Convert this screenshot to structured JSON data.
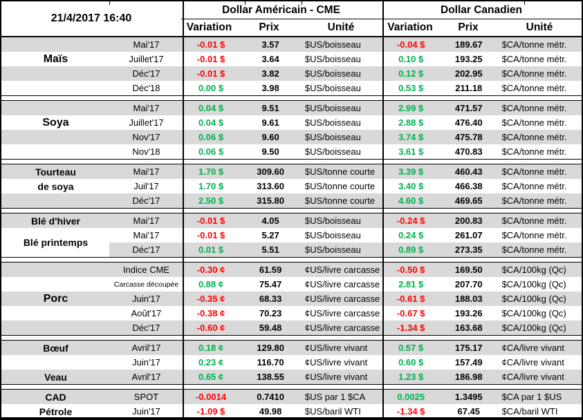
{
  "meta": {
    "datetime": "21/4/2017 16:40"
  },
  "header": {
    "us_title": "Dollar Américain - CME",
    "cad_title": "Dollar Canadien",
    "col_variation": "Variation",
    "col_prix": "Prix",
    "col_unite": "Unité"
  },
  "colors": {
    "positive_green": "#00B050",
    "negative_red": "#FF0000",
    "row_stripe_gray": "#D9D9D9"
  },
  "sections": [
    {
      "labels": [
        {
          "text": "Maïs",
          "center_row": 1.5,
          "size": "lg"
        }
      ],
      "rows": [
        {
          "month": "Mai'17",
          "us_variation": "-0.01 $",
          "us_price": "3.57",
          "us_unit": "$US/boisseau",
          "cad_variation": "-0.04 $",
          "cad_price": "189.67",
          "cad_unit": "$CA/tonne métr."
        },
        {
          "month": "Juillet'17",
          "us_variation": "-0.01 $",
          "us_price": "3.64",
          "us_unit": "$US/boisseau",
          "cad_variation": "0.10 $",
          "cad_price": "193.25",
          "cad_unit": "$CA/tonne métr."
        },
        {
          "month": "Déc'17",
          "us_variation": "-0.01 $",
          "us_price": "3.82",
          "us_unit": "$US/boisseau",
          "cad_variation": "0.12 $",
          "cad_price": "202.95",
          "cad_unit": "$CA/tonne métr."
        },
        {
          "month": "Déc'18",
          "us_variation": "0.00 $",
          "us_price": "3.98",
          "us_unit": "$US/boisseau",
          "cad_variation": "0.53 $",
          "cad_price": "211.18",
          "cad_unit": "$CA/tonne métr."
        }
      ]
    },
    {
      "labels": [
        {
          "text": "Soya",
          "center_row": 1.5,
          "size": "lg"
        }
      ],
      "rows": [
        {
          "month": "Mai'17",
          "us_variation": "0.04 $",
          "us_price": "9.51",
          "us_unit": "$US/boisseau",
          "cad_variation": "2.99 $",
          "cad_price": "471.57",
          "cad_unit": "$CA/tonne métr."
        },
        {
          "month": "Juillet'17",
          "us_variation": "0.04 $",
          "us_price": "9.61",
          "us_unit": "$US/boisseau",
          "cad_variation": "2.88 $",
          "cad_price": "476.40",
          "cad_unit": "$CA/tonne métr."
        },
        {
          "month": "Nov'17",
          "us_variation": "0.06 $",
          "us_price": "9.60",
          "us_unit": "$US/boisseau",
          "cad_variation": "3.74 $",
          "cad_price": "475.78",
          "cad_unit": "$CA/tonne métr."
        },
        {
          "month": "Nov'18",
          "us_variation": "0.06 $",
          "us_price": "9.50",
          "us_unit": "$US/boisseau",
          "cad_variation": "3.61 $",
          "cad_price": "470.83",
          "cad_unit": "$CA/tonne métr."
        }
      ]
    },
    {
      "labels": [
        {
          "text": "Tourteau",
          "center_row": 0.5,
          "size": "md"
        },
        {
          "text": "de soya",
          "center_row": 1.5,
          "size": "md"
        }
      ],
      "rows": [
        {
          "month": "Mai'17",
          "us_variation": "1.70 $",
          "us_price": "309.60",
          "us_unit": "$US/tonne courte",
          "cad_variation": "3.39 $",
          "cad_price": "460.43",
          "cad_unit": "$CA/tonne métr."
        },
        {
          "month": "Juil'17",
          "us_variation": "1.70 $",
          "us_price": "313.60",
          "us_unit": "$US/tonne courte",
          "cad_variation": "3.40 $",
          "cad_price": "466.38",
          "cad_unit": "$CA/tonne métr."
        },
        {
          "month": "Déc'17",
          "us_variation": "2.50 $",
          "us_price": "315.80",
          "us_unit": "$US/tonne courte",
          "cad_variation": "4.60 $",
          "cad_price": "469.65",
          "cad_unit": "$CA/tonne métr."
        }
      ]
    },
    {
      "labels": [
        {
          "text": "Blé d'hiver",
          "center_row": 0.5,
          "size": "md"
        },
        {
          "text": "Blé printemps",
          "center_row": 2.0,
          "size": "md"
        }
      ],
      "rows": [
        {
          "month": "Mai'17",
          "us_variation": "-0.01 $",
          "us_price": "4.05",
          "us_unit": "$US/boisseau",
          "cad_variation": "-0.24 $",
          "cad_price": "200.83",
          "cad_unit": "$CA/tonne métr."
        },
        {
          "month": "Mai'17",
          "us_variation": "-0.01 $",
          "us_price": "5.27",
          "us_unit": "$US/boisseau",
          "cad_variation": "0.24 $",
          "cad_price": "261.07",
          "cad_unit": "$CA/tonne métr.",
          "cat_white": true
        },
        {
          "month": "Déc'17",
          "us_variation": "0.01 $",
          "us_price": "5.51",
          "us_unit": "$US/boisseau",
          "cad_variation": "0.89 $",
          "cad_price": "273.35",
          "cad_unit": "$CA/tonne métr.",
          "cat_white": true
        }
      ]
    },
    {
      "labels": [
        {
          "text": "Porc",
          "center_row": 2.5,
          "size": "lg"
        }
      ],
      "rows": [
        {
          "month": "Indice CME",
          "us_variation": "-0.30 ¢",
          "us_price": "61.59",
          "us_unit": "¢US/livre carcasse",
          "cad_variation": "-0.50 $",
          "cad_price": "169.50",
          "cad_unit": "$CA/100kg (Qc)"
        },
        {
          "month": "Carcasse découpée",
          "us_variation": "0.88 ¢",
          "us_price": "75.47",
          "us_unit": "¢US/livre carcasse",
          "cad_variation": "2.81 $",
          "cad_price": "207.70",
          "cad_unit": "$CA/100kg (Qc)",
          "small_month": true
        },
        {
          "month": "Juin'17",
          "us_variation": "-0.35 ¢",
          "us_price": "68.33",
          "us_unit": "¢US/livre carcasse",
          "cad_variation": "-0.61 $",
          "cad_price": "188.03",
          "cad_unit": "$CA/100kg (Qc)"
        },
        {
          "month": "Août'17",
          "us_variation": "-0.38 ¢",
          "us_price": "70.23",
          "us_unit": "¢US/livre carcasse",
          "cad_variation": "-0.67 $",
          "cad_price": "193.26",
          "cad_unit": "$CA/100kg (Qc)"
        },
        {
          "month": "Déc'17",
          "us_variation": "-0.60 ¢",
          "us_price": "59.48",
          "us_unit": "¢US/livre carcasse",
          "cad_variation": "-1.34 $",
          "cad_price": "163.68",
          "cad_unit": "$CA/100kg (Qc)"
        }
      ]
    },
    {
      "labels": [
        {
          "text": "Bœuf",
          "center_row": 0.5,
          "size": "md"
        },
        {
          "text": "Veau",
          "center_row": 2.5,
          "size": "md"
        }
      ],
      "rows": [
        {
          "month": "Avril'17",
          "us_variation": "0.18 ¢",
          "us_price": "129.80",
          "us_unit": "¢US/livre vivant",
          "cad_variation": "0.57 $",
          "cad_price": "175.17",
          "cad_unit": "¢CA/livre vivant"
        },
        {
          "month": "Juin'17",
          "us_variation": "0.23 ¢",
          "us_price": "116.70",
          "us_unit": "¢US/livre vivant",
          "cad_variation": "0.60 $",
          "cad_price": "157.49",
          "cad_unit": "¢CA/livre vivant"
        },
        {
          "month": "Avril'17",
          "us_variation": "0.65 ¢",
          "us_price": "138.55",
          "us_unit": "¢US/livre vivant",
          "cad_variation": "1.23 $",
          "cad_price": "186.98",
          "cad_unit": "¢CA/livre vivant"
        }
      ]
    },
    {
      "labels": [
        {
          "text": "CAD",
          "center_row": 0.5,
          "size": "md"
        },
        {
          "text": "Pétrole",
          "center_row": 1.5,
          "size": "md"
        }
      ],
      "rows": [
        {
          "month": "SPOT",
          "us_variation": "-0.0014",
          "us_price": "0.7410",
          "us_unit": "$US par 1 $CA",
          "cad_variation": "0.0025",
          "cad_price": "1.3495",
          "cad_unit": "$CA par 1 $US"
        },
        {
          "month": "Juin'17",
          "us_variation": "-1.09 $",
          "us_price": "49.98",
          "us_unit": "$US/baril WTI",
          "cad_variation": "-1.34 $",
          "cad_price": "67.45",
          "cad_unit": "$CA/baril WTI"
        }
      ]
    }
  ]
}
